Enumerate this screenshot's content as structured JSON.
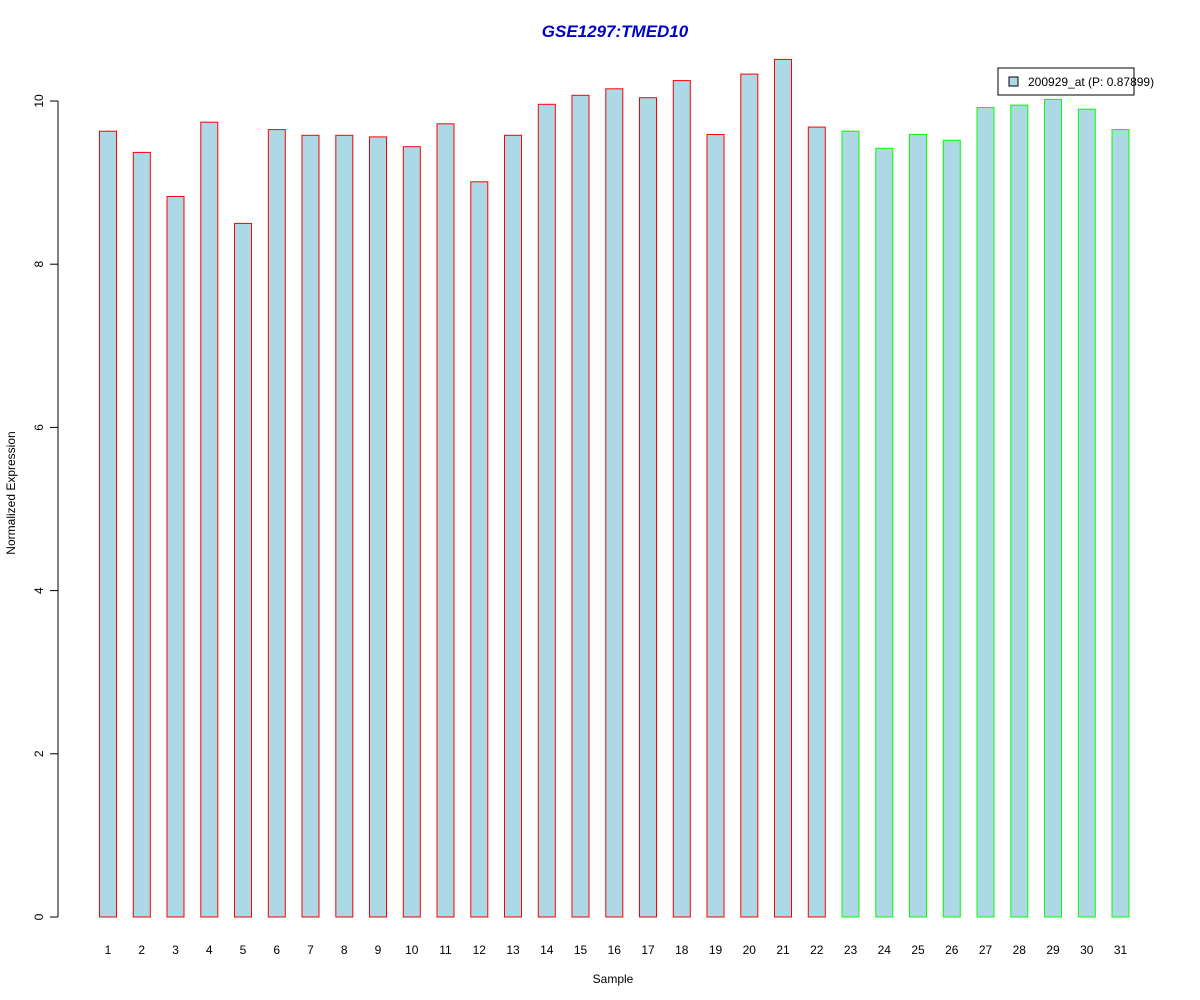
{
  "chart_data": {
    "type": "bar",
    "title": "GSE1297:TMED10",
    "title_color": "#0000CC",
    "xlabel": "Sample",
    "ylabel": "Normalized Expression",
    "categories": [
      "1",
      "2",
      "3",
      "4",
      "5",
      "6",
      "7",
      "8",
      "9",
      "10",
      "11",
      "12",
      "13",
      "14",
      "15",
      "16",
      "17",
      "18",
      "19",
      "20",
      "21",
      "22",
      "23",
      "24",
      "25",
      "26",
      "27",
      "28",
      "29",
      "30",
      "31"
    ],
    "series": [
      {
        "name": "200929_at (P: 0.87899)",
        "values": [
          9.63,
          9.37,
          8.83,
          9.74,
          8.5,
          9.65,
          9.58,
          9.58,
          9.56,
          9.44,
          9.72,
          9.01,
          9.58,
          9.96,
          10.07,
          10.15,
          10.04,
          10.25,
          9.59,
          10.33,
          10.51,
          9.68,
          9.63,
          9.42,
          9.59,
          9.52,
          9.92,
          9.95,
          10.02,
          9.9,
          9.65
        ]
      }
    ],
    "groups": [
      1,
      1,
      1,
      1,
      1,
      1,
      1,
      1,
      1,
      1,
      1,
      1,
      1,
      1,
      1,
      1,
      1,
      1,
      1,
      1,
      1,
      1,
      2,
      2,
      2,
      2,
      2,
      2,
      2,
      2,
      2
    ],
    "group_colors": {
      "1": "#FF0000",
      "2": "#00FF00"
    },
    "fill_color": "#ADD8E6",
    "ylim": [
      0,
      10.6
    ],
    "yticks": [
      0,
      2,
      4,
      6,
      8,
      10
    ],
    "grid": false,
    "legend": {
      "position": "top-right",
      "label": "200929_at (P: 0.87899)"
    }
  }
}
